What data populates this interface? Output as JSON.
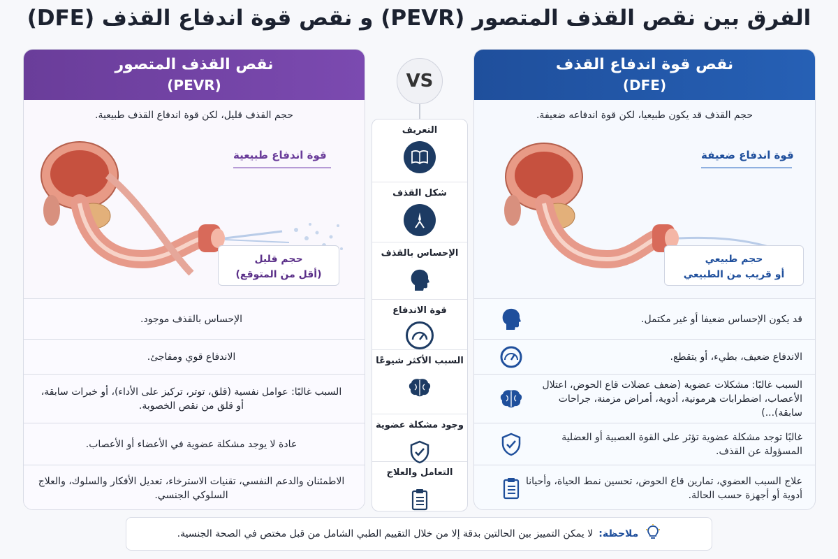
{
  "title": "الفرق بين نقص القذف المتصور (PEVR) و نقص قوة اندفاع القذف (DFE)",
  "vs_label": "VS",
  "left": {
    "heading": "نقص القذف المتصور",
    "abbr": "(PEVR)",
    "color": "#6a3d9a",
    "intro": "حجم القذف قليل، لكن قوة اندفاع القذف طبيعية.",
    "force_tag": "قوة اندفاع طبيعية",
    "volume_line1": "حجم قليل",
    "volume_line2": "(أقل من المتوقع)",
    "rows": [
      "الإحساس بالقذف موجود.",
      "الاندفاع قوي ومفاجئ.",
      "السبب غالبًا: عوامل نفسية (قلق، توتر، تركيز على الأداء)، أو خبرات سابقة، أو قلق من نقص الخصوبة.",
      "عادة لا يوجد مشكلة عضوية في الأعضاء أو الأعصاب.",
      "الاطمئنان والدعم النفسي، تقنيات الاسترخاء، تعديل الأفكار والسلوك، والعلاج السلوكي الجنسي."
    ]
  },
  "right": {
    "heading": "نقص قوة اندفاع القذف",
    "abbr": "(DFE)",
    "color": "#1f4f9c",
    "intro": "حجم القذف قد يكون طبيعيا، لكن قوة اندفاعه ضعيفة.",
    "force_tag": "قوة اندفاع ضعيفة",
    "volume_line1": "حجم طبيعي",
    "volume_line2": "أو قريب من الطبيعي",
    "rows": [
      {
        "text": "قد يكون الإحساس ضعيفا أو غير مكتمل.",
        "icon": "head-icon"
      },
      {
        "text": "الاندفاع ضعيف، بطيء، أو يتقطع.",
        "icon": "gauge-icon"
      },
      {
        "text": "السبب غالبًا: مشكلات عضوية (ضعف عضلات قاع الحوض، اعتلال الأعصاب، اضطرابات هرمونية، أدوية، أمراض مزمنة، جراحات سابقة)...)",
        "icon": "brain-icon"
      },
      {
        "text": "غالبًا توجد مشكلة عضوية تؤثر على القوة العصبية أو العضلية المسؤولة عن القذف.",
        "icon": "shield-check-icon"
      },
      {
        "text": "علاج السبب العضوي، تمارين قاع الحوض، تحسين نمط الحياة، وأحيانا أدوية أو أجهزة حسب الحالة.",
        "icon": "clipboard-icon"
      }
    ]
  },
  "middle": [
    {
      "label": "التعريف",
      "icon": "book-icon"
    },
    {
      "label": "شكل القذف",
      "icon": "drops-icon"
    },
    {
      "label": "الإحساس بالقذف",
      "icon": "head-icon"
    },
    {
      "label": "قوة الاندفاع",
      "icon": "gauge-icon"
    },
    {
      "label": "السبب الأكثر شيوعًا",
      "icon": "brain-icon"
    },
    {
      "label": "وجود مشكلة عضوية",
      "icon": "shield-check-icon"
    },
    {
      "label": "التعامل والعلاج",
      "icon": "clipboard-icon"
    }
  ],
  "note": {
    "label": "ملاحظة:",
    "text": "لا يمكن التمييز بين الحالتين بدقة إلا من خلال التقييم الطبي الشامل من قبل مختص في الصحة الجنسية.",
    "icon": "lightbulb-icon"
  }
}
